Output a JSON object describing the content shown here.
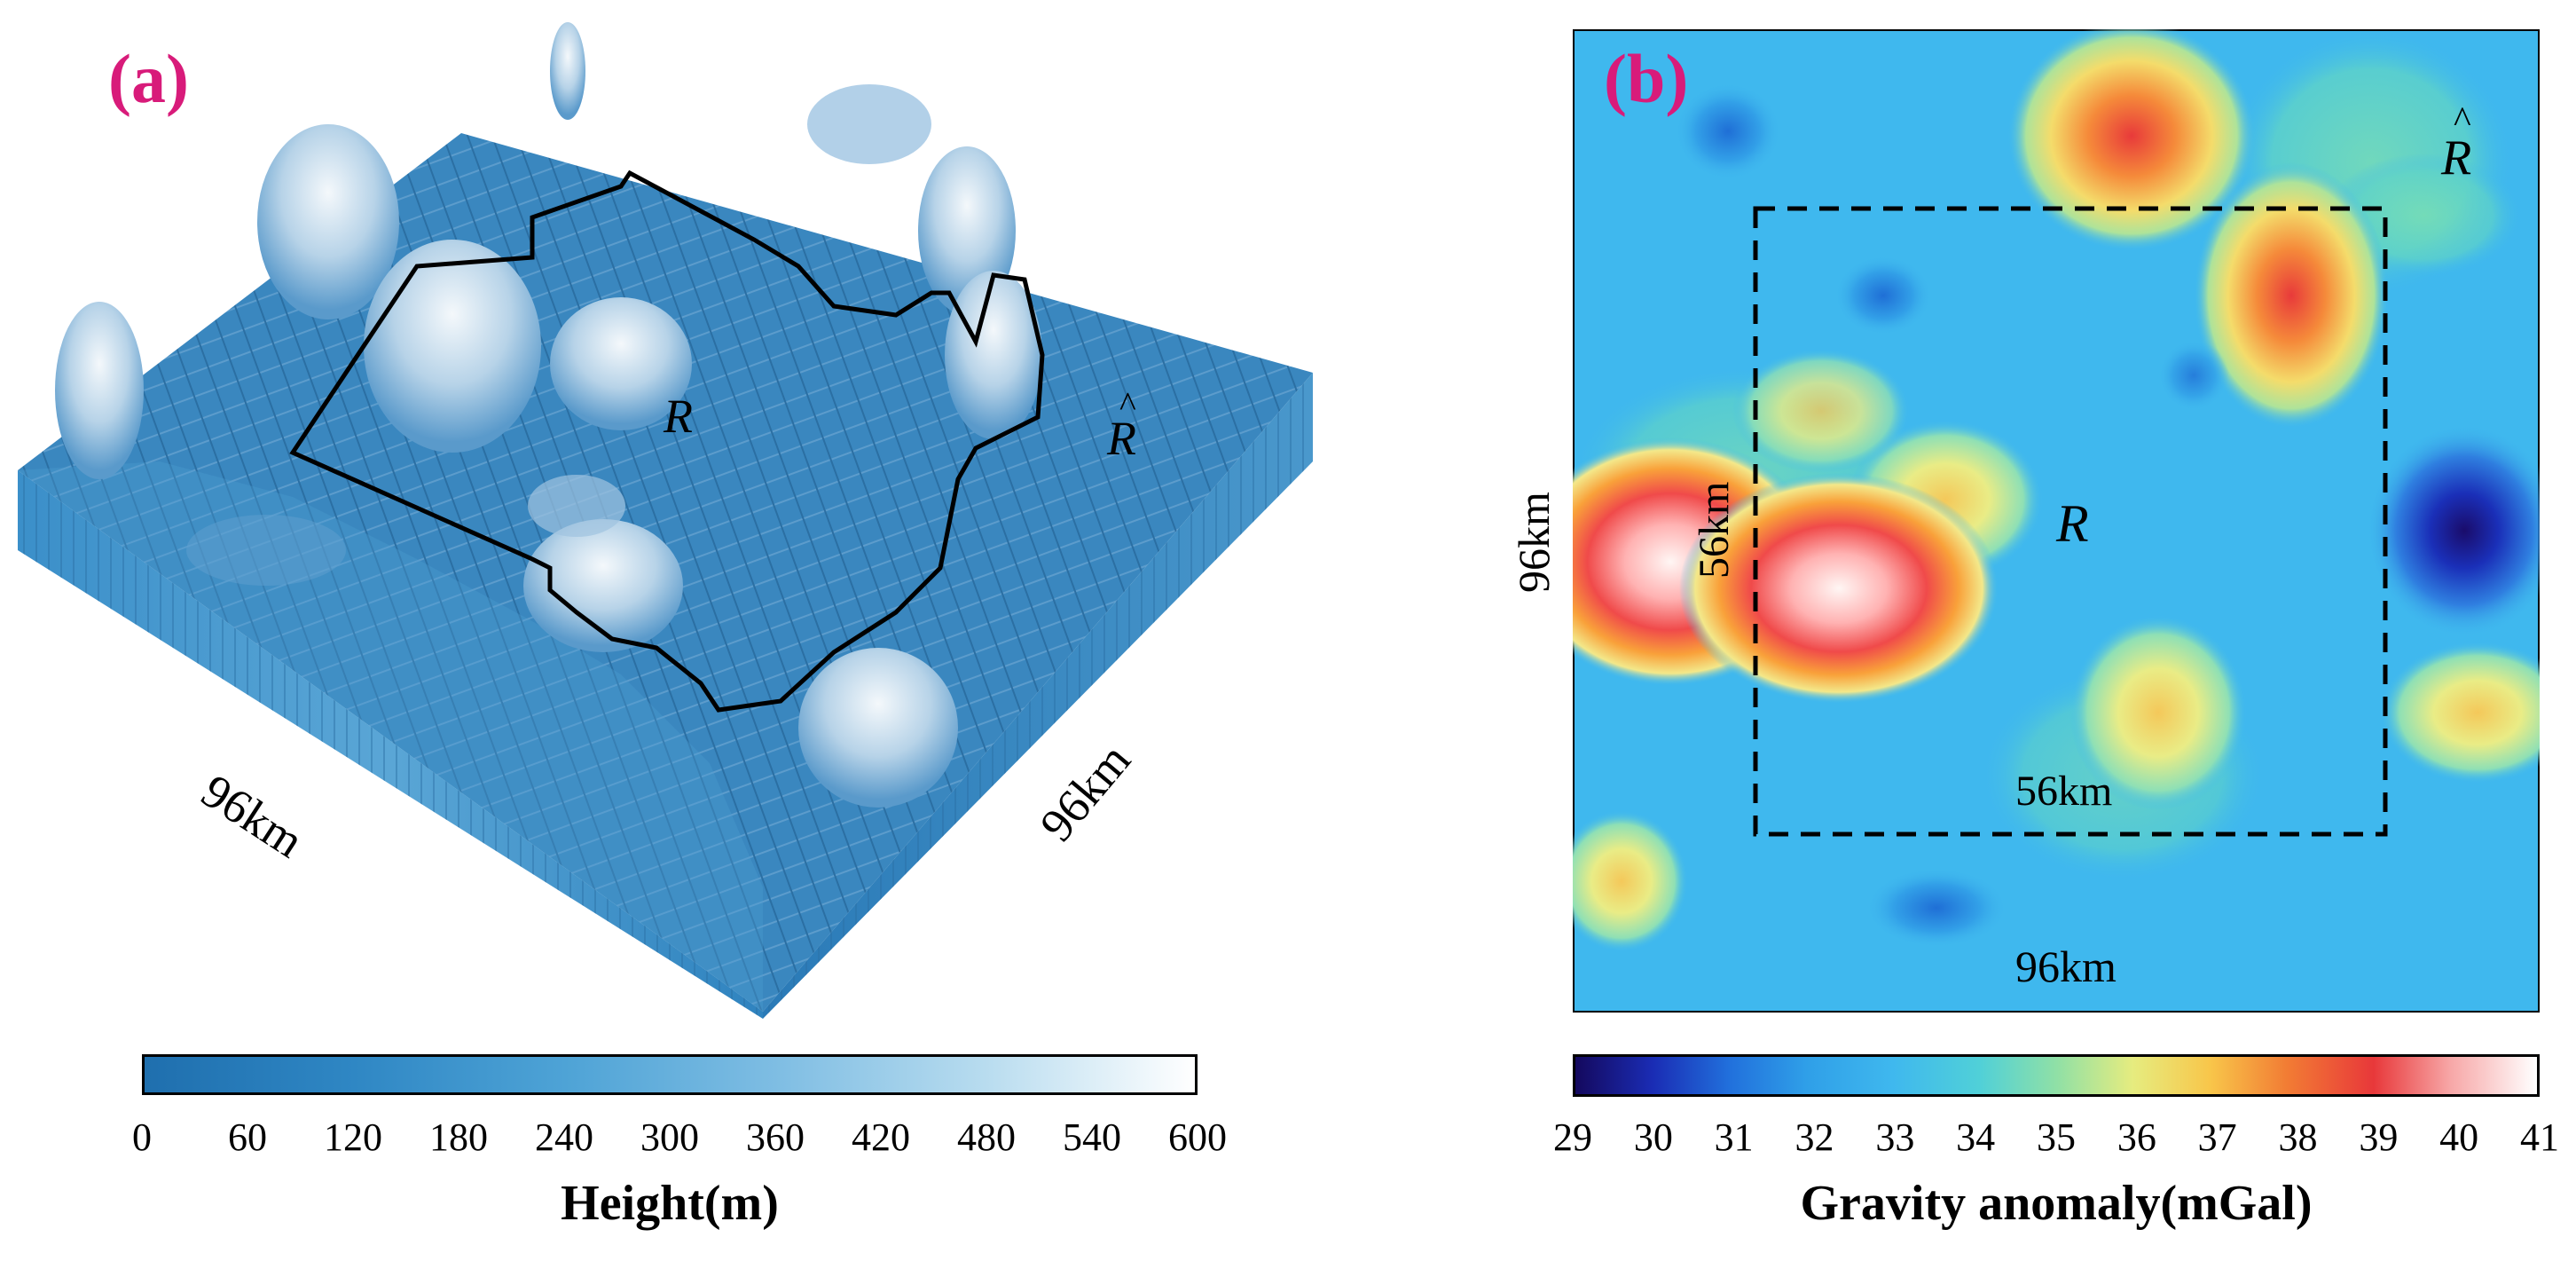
{
  "panel_a": {
    "label": "(a)",
    "region_label": "R",
    "outer_region_label": "R",
    "outer_region_hat": "^",
    "axis_left_label": "96km",
    "axis_right_label": "96km",
    "colorbar": {
      "ticks": [
        "0",
        "60",
        "120",
        "180",
        "240",
        "300",
        "360",
        "420",
        "480",
        "540",
        "600"
      ],
      "title": "Height(m)",
      "color_low": "#1f6fae",
      "color_high": "#ffffff"
    }
  },
  "panel_b": {
    "label": "(b)",
    "region_label": "R",
    "outer_region_label": "R",
    "outer_region_hat": "^",
    "inner_side_label": "56km",
    "inner_bottom_label": "56km",
    "outer_side_label": "96km",
    "outer_bottom_label": "96km",
    "colorbar": {
      "ticks": [
        "29",
        "30",
        "31",
        "32",
        "33",
        "34",
        "35",
        "36",
        "37",
        "38",
        "39",
        "40",
        "41"
      ],
      "title": "Gravity anomaly(mGal)"
    }
  },
  "colors": {
    "panel_label": "#d81b7a",
    "map_background": "#3fb8ee"
  }
}
